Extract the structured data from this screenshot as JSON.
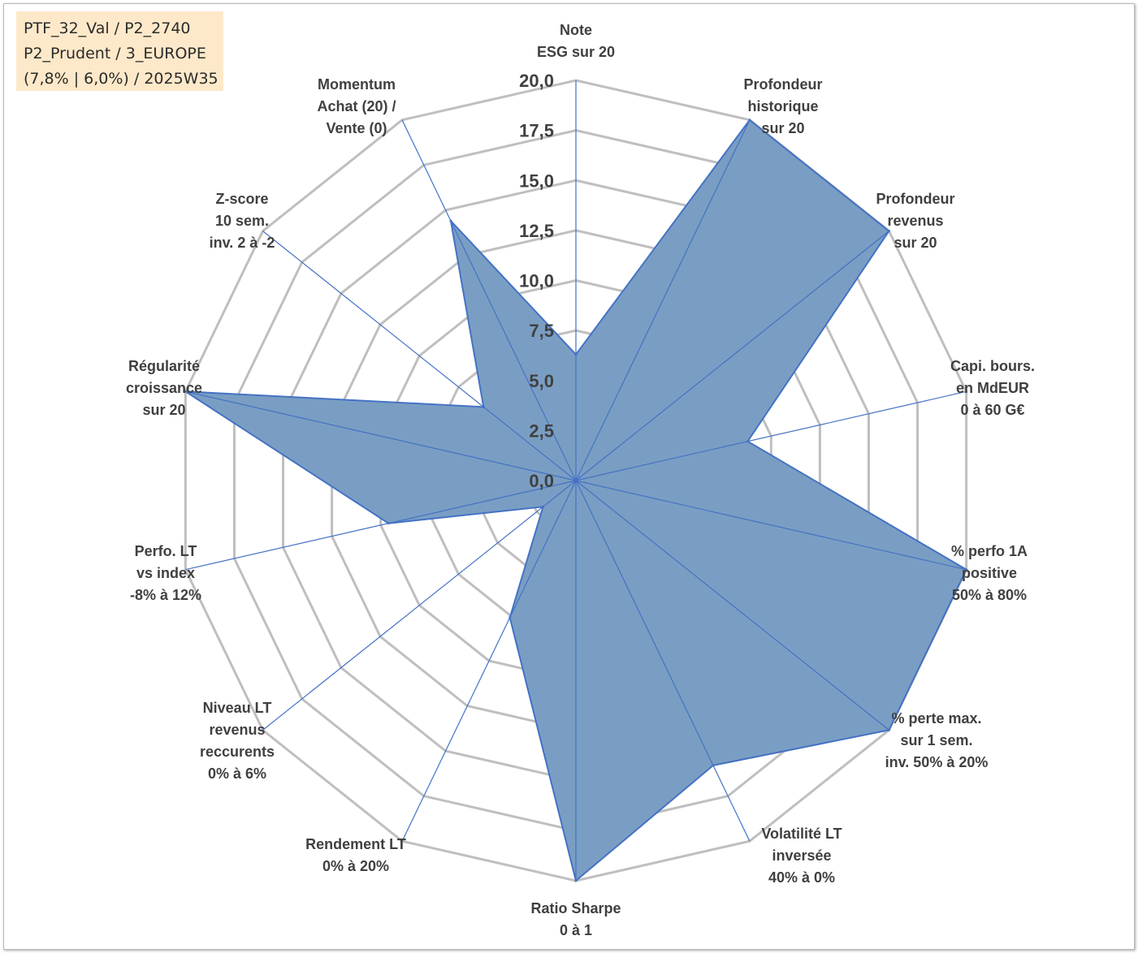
{
  "info_box": {
    "line1": "PTF_32_Val / P2_2740",
    "line2": "P2_Prudent / 3_EUROPE",
    "line3": "(7,8% | 6,0%) / 2025W35"
  },
  "chart_data": {
    "type": "radar",
    "rlim": [
      0,
      20
    ],
    "tick_values": [
      0,
      2.5,
      5,
      7.5,
      10,
      12.5,
      15,
      17.5,
      20
    ],
    "tick_labels": [
      "0,0",
      "2,5",
      "5,0",
      "7,5",
      "10,0",
      "12,5",
      "15,0",
      "17,5",
      "20,0"
    ],
    "categories": [
      [
        "Note",
        "ESG sur 20"
      ],
      [
        "Profondeur",
        "historique",
        "sur 20"
      ],
      [
        "Profondeur",
        "revenus",
        "sur 20"
      ],
      [
        "Capi. bours.",
        "en MdEUR",
        "0 à 60 G€"
      ],
      [
        "% perfo 1A",
        "positive",
        "50% à 80%"
      ],
      [
        "% perte max.",
        "sur 1 sem.",
        "inv. 50% à 20%"
      ],
      [
        "Volatilité LT",
        "inversée",
        "40% à 0%"
      ],
      [
        "Ratio Sharpe",
        "0 à 1"
      ],
      [
        "Rendement LT",
        "0% à 20%"
      ],
      [
        "Niveau LT",
        "revenus",
        "reccurents",
        "0% à 6%"
      ],
      [
        "Perfo. LT",
        "vs index",
        "-8% à 12%"
      ],
      [
        "Régularité",
        "croissance",
        "sur 20"
      ],
      [
        "Z-score",
        "10 sem.",
        "inv. 2 à -2"
      ],
      [
        "Momentum",
        "Achat (20) /",
        "Vente (0)"
      ]
    ],
    "series": [
      {
        "values": [
          6.3,
          20,
          20,
          8.8,
          20,
          20,
          15.8,
          20,
          7.6,
          2.1,
          9.6,
          20,
          5.9,
          14.4
        ]
      }
    ],
    "grid": true,
    "colors": {
      "fill": "#7a9ec3",
      "stroke": "#4472c4",
      "grid": "#bfbfbf",
      "spokes": "#4472c4",
      "text": "#404040"
    }
  }
}
